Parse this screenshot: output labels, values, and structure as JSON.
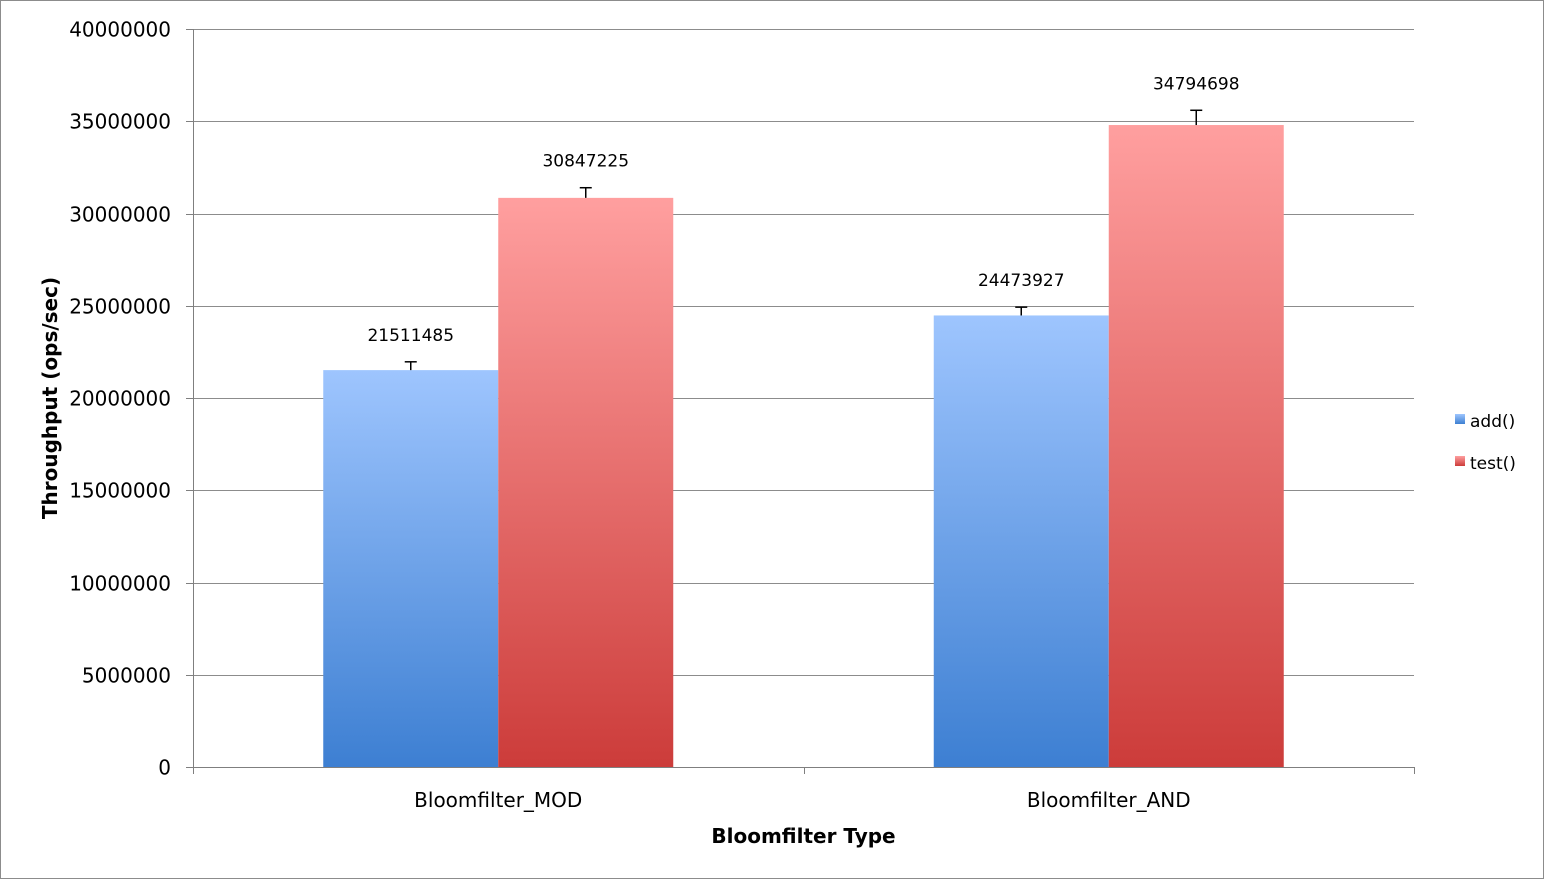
{
  "chart_data": {
    "type": "bar",
    "xlabel": "Bloomfilter Type",
    "ylabel": "Throughput (ops/sec)",
    "ylim": [
      0,
      40000000
    ],
    "yticks": [
      0,
      5000000,
      10000000,
      15000000,
      20000000,
      25000000,
      30000000,
      35000000,
      40000000
    ],
    "categories": [
      "Bloomfilter_MOD",
      "Bloomfilter_AND"
    ],
    "grid": true,
    "legend_position": "right",
    "series": [
      {
        "name": "add()",
        "values": [
          21511485,
          24473927
        ],
        "error": [
          450000,
          450000
        ],
        "color_top": "#9ec5fe",
        "color_bottom": "#3d7fd2"
      },
      {
        "name": "test()",
        "values": [
          30847225,
          34794698
        ],
        "error": [
          550000,
          800000
        ],
        "color_top": "#ff9f9f",
        "color_bottom": "#cc3c3a"
      }
    ]
  }
}
